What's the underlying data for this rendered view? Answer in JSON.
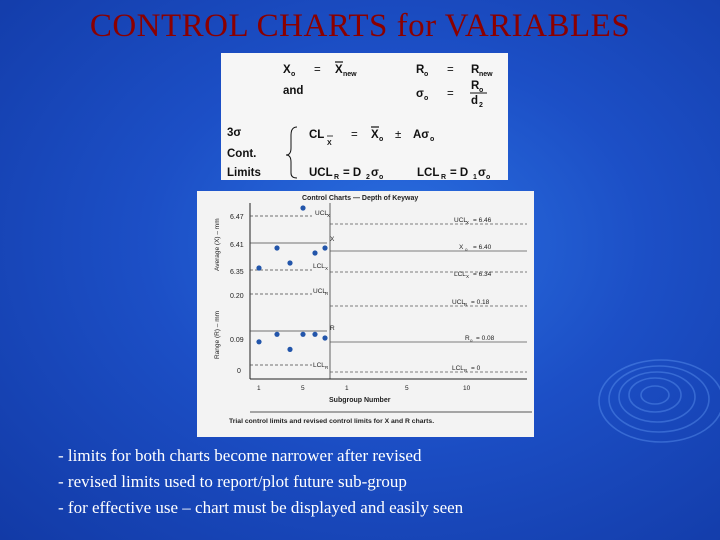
{
  "title": "CONTROL CHARTS for VARIABLES",
  "formula_box": {
    "row1_left": "X",
    "row1_left_sub": "o",
    "eq": "=",
    "row1_mid": "X",
    "row1_mid_sub": "new",
    "row1_right": "R",
    "row1_right_sub": "o",
    "row1_right_val": "R",
    "row1_right_val_sub": "new",
    "and": "and",
    "sigma_sym": "σ",
    "sigma_sub": "o",
    "frac_num": "R",
    "frac_num_sub": "o",
    "frac_den": "d",
    "frac_den_sub": "2",
    "three_sigma": "3σ",
    "cont": "Cont.",
    "limits": "Limits",
    "cl_label": "CL",
    "cl_sub": "X",
    "cl_expr_x": "X",
    "cl_expr_x_sub": "o",
    "cl_pm": "±",
    "cl_expr_a": "Aσ",
    "cl_expr_a_sub": "o",
    "ucl_label": "UCL",
    "ucl_sub": "R",
    "ucl_expr": "= D",
    "ucl_expr_sub": "2",
    "ucl_expr_tail": "σ",
    "ucl_expr_tail_sub": "o",
    "lcl_label": "LCL",
    "lcl_sub": "R",
    "lcl_expr": "= D",
    "lcl_expr_sub": "1",
    "lcl_expr_tail": "σ",
    "lcl_expr_tail_sub": "o"
  },
  "chart_data": {
    "type": "line",
    "title": "Control Charts — Depth of Keyway",
    "caption": "Trial control limits and revised control limits for X and R charts.",
    "xlabel": "Subgroup Number",
    "x_ticks": [
      "1",
      "5",
      "1",
      "5",
      "10"
    ],
    "xbar_chart": {
      "ylabel": "Average (X) – mm",
      "y_ticks": [
        "6.47",
        "6.41",
        "6.35"
      ],
      "ylim": [
        6.33,
        6.49
      ],
      "trial_points": [
        6.36,
        6.4,
        6.37,
        6.48,
        6.39,
        6.4
      ],
      "trial_labels": [
        "UCL",
        "X",
        "LCL"
      ],
      "trial_label_subs": [
        "X",
        "",
        "X"
      ],
      "revised_labels": [
        "UCL",
        "X",
        "LCL"
      ],
      "revised_label_subs": [
        "X",
        "o",
        "X"
      ],
      "revised_values": [
        "= 6.46",
        "= 6.40",
        "= 6.34"
      ]
    },
    "r_chart": {
      "ylabel": "Range (R) – mm",
      "y_ticks": [
        "0.20",
        "0.09",
        "0"
      ],
      "ylim": [
        0,
        0.22
      ],
      "trial_points": [
        0.08,
        0.1,
        0.06,
        0.1,
        0.1,
        0.09
      ],
      "trial_labels": [
        "UCL",
        "R",
        "LCL"
      ],
      "trial_label_subs": [
        "R",
        "",
        "R"
      ],
      "revised_labels": [
        "UCL",
        "R",
        "LCL"
      ],
      "revised_label_subs": [
        "R",
        "o",
        "R"
      ],
      "revised_values": [
        "= 0.18",
        "= 0.08",
        "= 0"
      ]
    },
    "point_color": "#2255aa"
  },
  "bullets": [
    "- limits for both charts become narrower after revised",
    "- revised  limits used to report/plot future sub-group",
    "- for effective use – chart must be displayed and easily seen"
  ],
  "colors": {
    "title": "#8b0000",
    "background": "#1c4fc6",
    "bullet_text": "#ffffff"
  }
}
